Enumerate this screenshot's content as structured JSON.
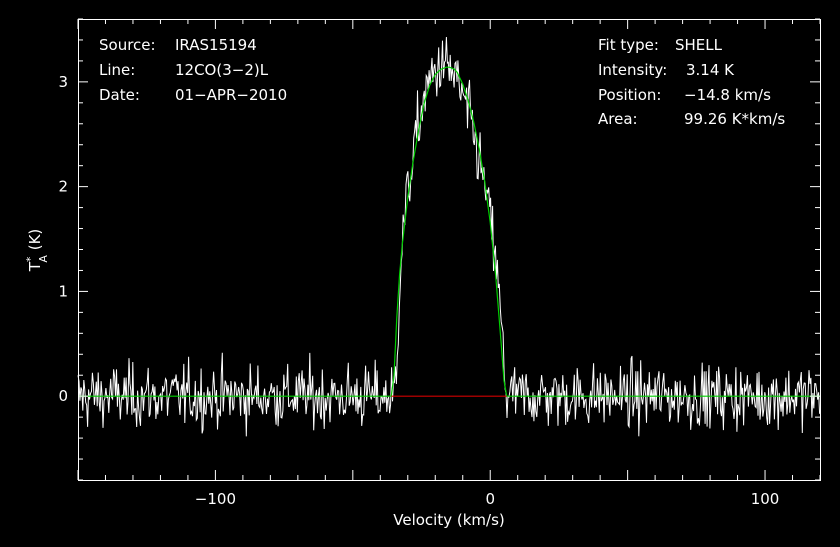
{
  "colors": {
    "background": "#000000",
    "spectrum": "#ffffff",
    "fit": "#00d000",
    "baseline": "#d00000",
    "frame": "#ffffff"
  },
  "header_left": {
    "source_label": "Source:",
    "source_value": "IRAS15194",
    "line_label": "Line:",
    "line_value": "12CO(3−2)L",
    "date_label": "Date:",
    "date_value": "01−APR−2010"
  },
  "header_right": {
    "fit_label": "Fit type:",
    "fit_value": "SHELL",
    "intensity_label": "Intensity:",
    "intensity_value": "3.14 K",
    "position_label": "Position:",
    "position_value": "−14.8 km/s",
    "area_label": "Area:",
    "area_value": "99.26 K*km/s"
  },
  "chart_data": {
    "type": "line",
    "xlabel": "Velocity (km/s)",
    "ylabel": "T*A (K)",
    "xlim": [
      -150,
      120
    ],
    "ylim": [
      -0.8,
      3.6
    ],
    "x_ticks": [
      -100,
      0,
      100
    ],
    "x_tick_labels": [
      "−100",
      "0",
      "100"
    ],
    "y_ticks": [
      0,
      1,
      2,
      3
    ],
    "y_tick_labels": [
      "0",
      "1",
      "2",
      "3"
    ],
    "grid": false,
    "series": [
      {
        "kind": "spectrum",
        "x": [
          -150,
          -140,
          -130,
          -120,
          -110,
          -100,
          -90,
          -80,
          -70,
          -60,
          -50,
          -40,
          -35,
          -34,
          -33,
          -32,
          -30,
          -28,
          -26,
          -24,
          -22,
          -20,
          -18,
          -16,
          -14,
          -12,
          -10,
          -8,
          -6,
          -4,
          -2,
          0,
          2,
          4,
          5,
          6,
          7,
          10,
          20,
          30,
          40,
          50,
          60,
          70,
          80,
          90,
          100,
          110,
          120
        ],
        "y": [
          0.0,
          0.0,
          0.0,
          0.0,
          0.0,
          0.0,
          0.0,
          0.0,
          0.0,
          0.0,
          0.0,
          0.0,
          0.0,
          0.3,
          1.1,
          1.5,
          1.95,
          2.3,
          2.6,
          2.85,
          3.0,
          3.1,
          3.15,
          3.15,
          3.1,
          3.0,
          2.85,
          2.7,
          2.5,
          2.25,
          2.0,
          1.7,
          1.3,
          0.7,
          0.3,
          0.0,
          0.0,
          0.0,
          0.0,
          0.0,
          0.0,
          0.0,
          0.0,
          0.0,
          0.0,
          0.0,
          0.0,
          0.0,
          0.0
        ],
        "noise_rms": 0.15
      },
      {
        "kind": "fit",
        "x": [
          -150,
          -36,
          -35,
          -34,
          -33,
          -32,
          -30,
          -28,
          -26,
          -24,
          -22,
          -20,
          -18,
          -16,
          -14.8,
          -13,
          -12,
          -10,
          -8,
          -6,
          -4,
          -2,
          0,
          2,
          4,
          5,
          6,
          120
        ],
        "y": [
          0.0,
          0.0,
          0.2,
          0.75,
          1.15,
          1.45,
          1.9,
          2.25,
          2.55,
          2.8,
          2.97,
          3.07,
          3.12,
          3.14,
          3.14,
          3.12,
          3.09,
          2.98,
          2.82,
          2.62,
          2.36,
          2.05,
          1.66,
          1.15,
          0.5,
          0.15,
          0.0,
          0.0
        ]
      },
      {
        "kind": "baseline",
        "x": [
          -36,
          6
        ],
        "y": [
          0,
          0
        ]
      }
    ]
  }
}
